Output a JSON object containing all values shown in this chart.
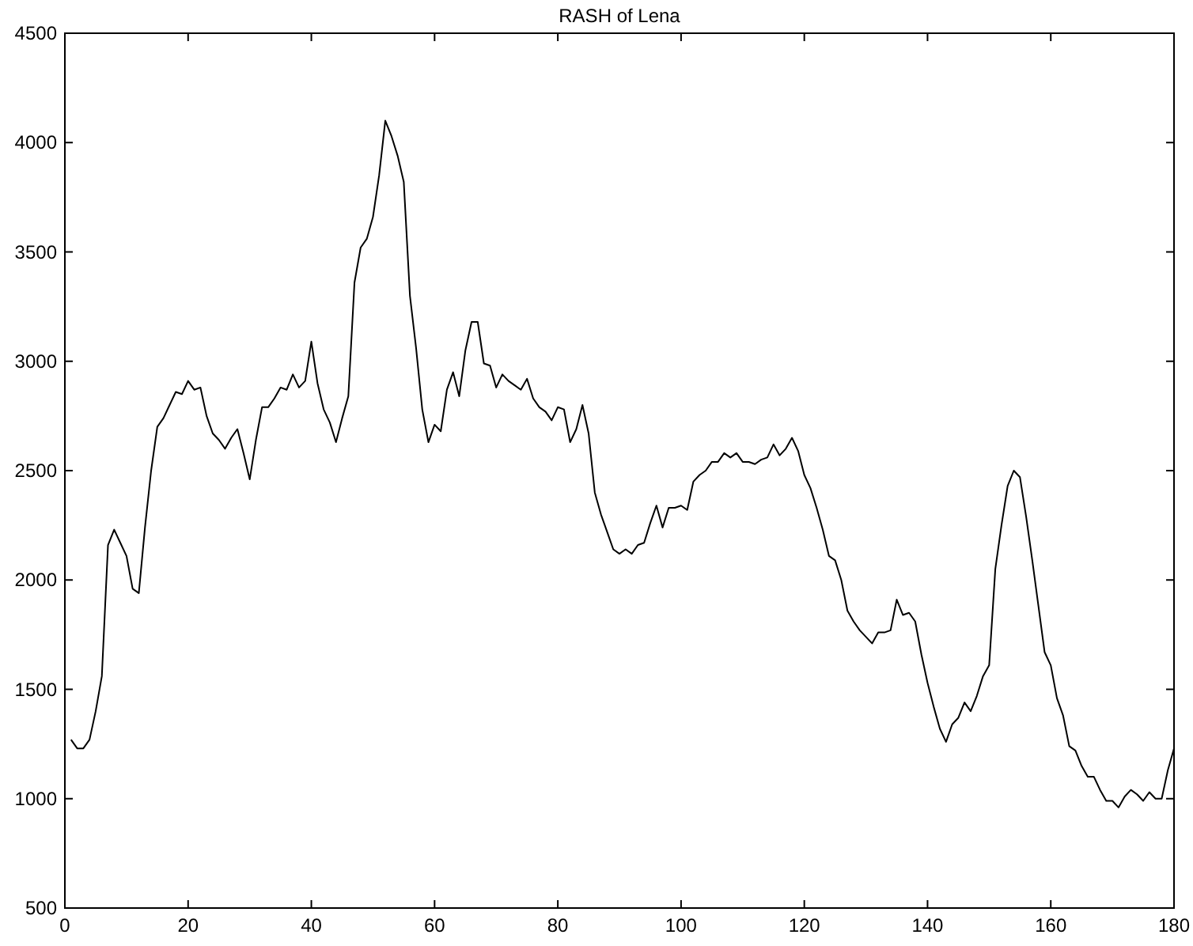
{
  "chart_data": {
    "type": "line",
    "title": "RASH of Lena",
    "xlim": [
      0,
      180
    ],
    "ylim": [
      500,
      4500
    ],
    "xticks": [
      0,
      20,
      40,
      60,
      80,
      100,
      120,
      140,
      160,
      180
    ],
    "yticks": [
      500,
      1000,
      1500,
      2000,
      2500,
      3000,
      3500,
      4000,
      4500
    ],
    "grid": false,
    "marker": "none",
    "line_style": "solid",
    "series": [
      {
        "color": "#000000",
        "x": [
          1,
          2,
          3,
          4,
          5,
          6,
          7,
          8,
          9,
          10,
          11,
          12,
          13,
          14,
          15,
          16,
          17,
          18,
          19,
          20,
          21,
          22,
          23,
          24,
          25,
          26,
          27,
          28,
          29,
          30,
          31,
          32,
          33,
          34,
          35,
          36,
          37,
          38,
          39,
          40,
          41,
          42,
          43,
          44,
          45,
          46,
          47,
          48,
          49,
          50,
          51,
          52,
          53,
          54,
          55,
          56,
          57,
          58,
          59,
          60,
          61,
          62,
          63,
          64,
          65,
          66,
          67,
          68,
          69,
          70,
          71,
          72,
          73,
          74,
          75,
          76,
          77,
          78,
          79,
          80,
          81,
          82,
          83,
          84,
          85,
          86,
          87,
          88,
          89,
          90,
          91,
          92,
          93,
          94,
          95,
          96,
          97,
          98,
          99,
          100,
          101,
          102,
          103,
          104,
          105,
          106,
          107,
          108,
          109,
          110,
          111,
          112,
          113,
          114,
          115,
          116,
          117,
          118,
          119,
          120,
          121,
          122,
          123,
          124,
          125,
          126,
          127,
          128,
          129,
          130,
          131,
          132,
          133,
          134,
          135,
          136,
          137,
          138,
          139,
          140,
          141,
          142,
          143,
          144,
          145,
          146,
          147,
          148,
          149,
          150,
          151,
          152,
          153,
          154,
          155,
          156,
          157,
          158,
          159,
          160,
          161,
          162,
          163,
          164,
          165,
          166,
          167,
          168,
          169,
          170,
          171,
          172,
          173,
          174,
          175,
          176,
          177,
          178,
          179,
          180
        ],
        "values": [
          1270,
          1230,
          1230,
          1270,
          1400,
          1560,
          2160,
          2230,
          2170,
          2110,
          1960,
          1940,
          2240,
          2500,
          2700,
          2740,
          2800,
          2860,
          2850,
          2910,
          2870,
          2880,
          2750,
          2670,
          2640,
          2600,
          2650,
          2690,
          2580,
          2460,
          2640,
          2790,
          2790,
          2830,
          2880,
          2870,
          2940,
          2880,
          2910,
          3090,
          2900,
          2780,
          2720,
          2630,
          2740,
          2840,
          3360,
          3520,
          3560,
          3660,
          3850,
          4100,
          4030,
          3940,
          3820,
          3300,
          3060,
          2780,
          2630,
          2710,
          2680,
          2870,
          2950,
          2840,
          3050,
          3180,
          3180,
          2990,
          2980,
          2880,
          2940,
          2910,
          2890,
          2870,
          2920,
          2830,
          2790,
          2770,
          2730,
          2790,
          2780,
          2630,
          2690,
          2800,
          2670,
          2400,
          2300,
          2220,
          2140,
          2120,
          2140,
          2120,
          2160,
          2170,
          2260,
          2340,
          2240,
          2330,
          2330,
          2340,
          2320,
          2450,
          2480,
          2500,
          2540,
          2540,
          2580,
          2560,
          2580,
          2540,
          2540,
          2530,
          2550,
          2560,
          2620,
          2570,
          2600,
          2650,
          2590,
          2480,
          2420,
          2330,
          2230,
          2110,
          2090,
          2000,
          1860,
          1810,
          1770,
          1740,
          1710,
          1760,
          1760,
          1770,
          1910,
          1840,
          1850,
          1810,
          1660,
          1530,
          1420,
          1320,
          1260,
          1340,
          1370,
          1440,
          1400,
          1470,
          1560,
          1610,
          2050,
          2250,
          2430,
          2500,
          2470,
          2290,
          2090,
          1880,
          1670,
          1610,
          1460,
          1380,
          1240,
          1220,
          1150,
          1100,
          1100,
          1040,
          990,
          990,
          960,
          1010,
          1040,
          1020,
          990,
          1030,
          1000,
          1000,
          1130,
          1230
        ]
      }
    ]
  }
}
